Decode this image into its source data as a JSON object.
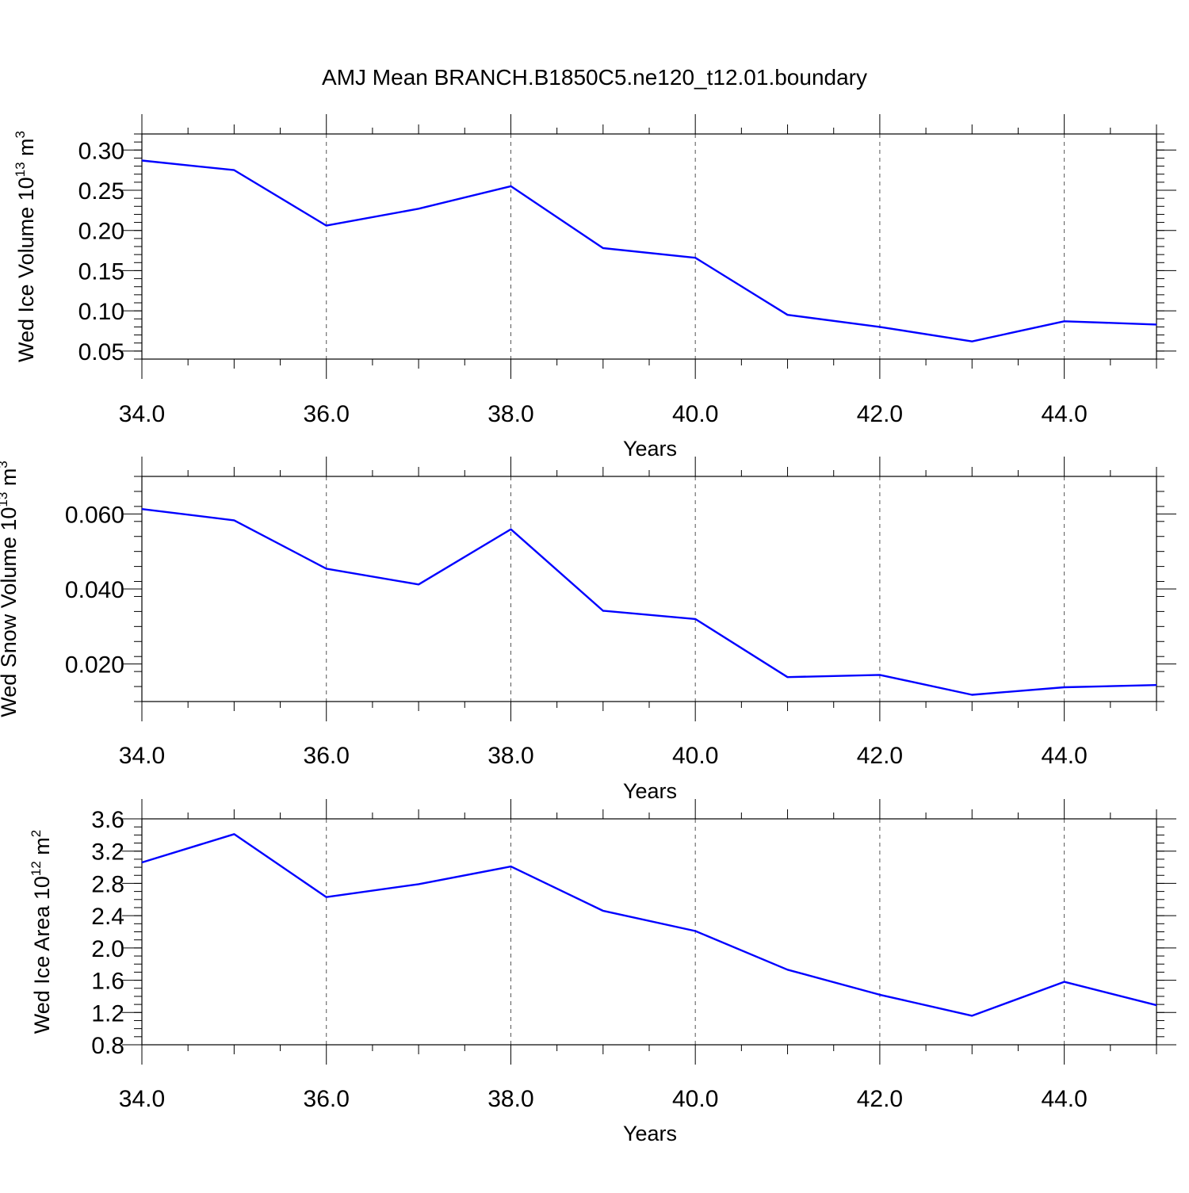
{
  "figure": {
    "title": "AMJ Mean BRANCH.B1850C5.ne120_t12.01.boundary",
    "line_color": "#0000ff",
    "grid_color": "#555555"
  },
  "chart_data": [
    {
      "type": "line",
      "xlabel": "Years",
      "ylabel": {
        "main": "Wed Ice Volume 10",
        "sup": "13",
        "unit": " m",
        "unit_sup": "3"
      },
      "xlim": [
        34,
        45
      ],
      "ylim": [
        0.04,
        0.32
      ],
      "x_ticks": [
        34,
        36,
        38,
        40,
        42,
        44
      ],
      "x_tick_labels": [
        "34.0",
        "36.0",
        "38.0",
        "40.0",
        "42.0",
        "44.0"
      ],
      "y_ticks": [
        0.05,
        0.1,
        0.15,
        0.2,
        0.25,
        0.3
      ],
      "y_tick_labels": [
        "0.05",
        "0.10",
        "0.15",
        "0.20",
        "0.25",
        "0.30"
      ],
      "y_minor_step": 0.01,
      "x_grid": [
        36,
        38,
        40,
        42,
        44
      ],
      "series": [
        {
          "x": [
            34,
            35,
            36,
            37,
            38,
            39,
            40,
            41,
            42,
            43,
            44,
            45
          ],
          "y": [
            0.287,
            0.275,
            0.206,
            0.227,
            0.255,
            0.178,
            0.166,
            0.095,
            0.08,
            0.062,
            0.087,
            0.083
          ]
        }
      ]
    },
    {
      "type": "line",
      "xlabel": "Years",
      "ylabel": {
        "main": "Wed Snow Volume 10",
        "sup": "13",
        "unit": " m",
        "unit_sup": "3"
      },
      "xlim": [
        34,
        45
      ],
      "ylim": [
        0.01,
        0.07
      ],
      "x_ticks": [
        34,
        36,
        38,
        40,
        42,
        44
      ],
      "x_tick_labels": [
        "34.0",
        "36.0",
        "38.0",
        "40.0",
        "42.0",
        "44.0"
      ],
      "y_ticks": [
        0.02,
        0.04,
        0.06
      ],
      "y_tick_labels": [
        "0.020",
        "0.040",
        "0.060"
      ],
      "y_minor_step": 0.004,
      "x_grid": [
        36,
        38,
        40,
        42,
        44
      ],
      "series": [
        {
          "x": [
            34,
            35,
            36,
            37,
            38,
            39,
            40,
            41,
            42,
            43,
            44,
            45
          ],
          "y": [
            0.0613,
            0.0583,
            0.0454,
            0.0412,
            0.0559,
            0.0342,
            0.032,
            0.0165,
            0.0171,
            0.0118,
            0.0138,
            0.0144
          ]
        }
      ]
    },
    {
      "type": "line",
      "xlabel": "Years",
      "ylabel": {
        "main": "Wed Ice Area 10",
        "sup": "12",
        "unit": " m",
        "unit_sup": "2"
      },
      "xlim": [
        34,
        45
      ],
      "ylim": [
        0.8,
        3.6
      ],
      "x_ticks": [
        34,
        36,
        38,
        40,
        42,
        44
      ],
      "x_tick_labels": [
        "34.0",
        "36.0",
        "38.0",
        "40.0",
        "42.0",
        "44.0"
      ],
      "y_ticks": [
        0.8,
        1.2,
        1.6,
        2.0,
        2.4,
        2.8,
        3.2,
        3.6
      ],
      "y_tick_labels": [
        "0.8",
        "1.2",
        "1.6",
        "2.0",
        "2.4",
        "2.8",
        "3.2",
        "3.6"
      ],
      "y_minor_step": 0.1,
      "x_grid": [
        36,
        38,
        40,
        42,
        44
      ],
      "series": [
        {
          "x": [
            34,
            35,
            36,
            37,
            38,
            39,
            40,
            41,
            42,
            43,
            44,
            45
          ],
          "y": [
            3.06,
            3.41,
            2.63,
            2.79,
            3.01,
            2.46,
            2.21,
            1.73,
            1.42,
            1.16,
            1.58,
            1.29
          ]
        }
      ]
    }
  ]
}
